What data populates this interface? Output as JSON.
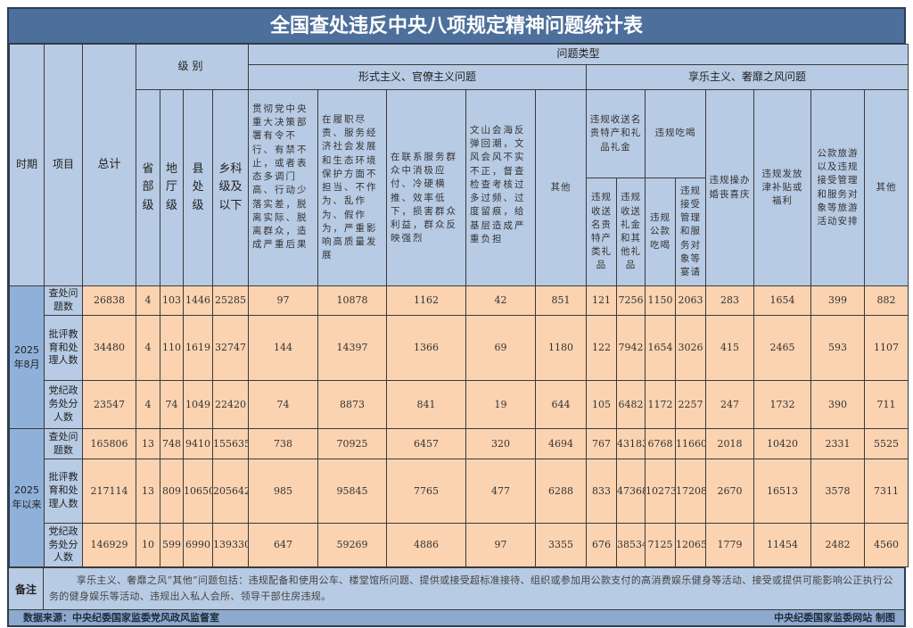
{
  "title": "全国查处违反中央八项规定精神问题统计表",
  "header": {
    "period": "时期",
    "item": "项目",
    "total": "总计",
    "level": "级别",
    "levels": [
      "省部级",
      "地厅级",
      "县处级",
      "乡科级及以下"
    ],
    "problem_type": "问题类型",
    "formalism": "形式主义、官僚主义问题",
    "formalism_cols": [
      "贯彻党中央重大决策部署有令不行、有禁不止，或者表态多调门高、行动少落实差，脱离实际、脱离群众，造成严重后果",
      "在履职尽责、服务经济社会发展和生态环境保护方面不担当、不作为、乱作为、假作为，严重影响高质量发展",
      "在联系服务群众中消极应付、冷硬横推、效率低下，损害群众利益，群众反映强烈",
      "文山会海反弹回潮，文风会风不实不正，督查检查考核过多过频、过度留痕，给基层造成严重负担",
      "其他"
    ],
    "hedonism": "享乐主义、奢靡之风问题",
    "gifts": "违规收送名贵特产和礼品礼金",
    "gifts_sub": [
      "违规收送名贵特产类礼品",
      "违规收送礼金和其他礼品"
    ],
    "dining": "违规吃喝",
    "dining_sub": [
      "违规公款吃喝",
      "违规接受管理和服务对象等宴请"
    ],
    "hedonism_cols": [
      "违规操办婚丧喜庆",
      "违规发放津补贴或福利",
      "公款旅游以及违规接受管理和服务对象等旅游活动安排",
      "其他"
    ]
  },
  "groups": [
    {
      "period": "2025年8月",
      "rows": [
        {
          "item": "查处问题数",
          "values": [
            "26838",
            "4",
            "103",
            "1446",
            "25285",
            "97",
            "10878",
            "1162",
            "42",
            "851",
            "121",
            "7256",
            "1150",
            "2063",
            "283",
            "1654",
            "399",
            "882"
          ]
        },
        {
          "item": "批评教育和处理人数",
          "values": [
            "34480",
            "4",
            "110",
            "1619",
            "32747",
            "144",
            "14397",
            "1366",
            "69",
            "1180",
            "122",
            "7942",
            "1654",
            "3026",
            "415",
            "2465",
            "593",
            "1107"
          ]
        },
        {
          "item": "党纪政务处分人数",
          "values": [
            "23547",
            "4",
            "74",
            "1049",
            "22420",
            "74",
            "8873",
            "841",
            "19",
            "644",
            "105",
            "6482",
            "1172",
            "2257",
            "247",
            "1732",
            "390",
            "711"
          ]
        }
      ]
    },
    {
      "period": "2025年以来",
      "rows": [
        {
          "item": "查处问题数",
          "values": [
            "165806",
            "13",
            "748",
            "9410",
            "155635",
            "738",
            "70925",
            "6457",
            "320",
            "4694",
            "767",
            "43183",
            "6768",
            "11660",
            "2018",
            "10420",
            "2331",
            "5525"
          ]
        },
        {
          "item": "批评教育和处理人数",
          "values": [
            "217114",
            "13",
            "809",
            "10650",
            "205642",
            "985",
            "95845",
            "7765",
            "477",
            "6288",
            "833",
            "47368",
            "10273",
            "17208",
            "2670",
            "16513",
            "3578",
            "7311"
          ]
        },
        {
          "item": "党纪政务处分人数",
          "values": [
            "146929",
            "10",
            "599",
            "6990",
            "139330",
            "647",
            "59269",
            "4886",
            "97",
            "3355",
            "676",
            "38534",
            "7125",
            "12065",
            "1779",
            "11454",
            "2482",
            "4560"
          ]
        }
      ]
    }
  ],
  "note": {
    "label": "备注",
    "text": "享乐主义、奢靡之风“其他”问题包括：违规配备和使用公车、楼堂馆所问题、提供或接受超标准接待、组织或参加用公款支付的高消费娱乐健身等活动、接受或提供可能影响公正执行公务的健身娱乐等活动、违规出入私人会所、领导干部住房违规。"
  },
  "footer": {
    "source": "数据来源：中央纪委国家监委党风政风监督室",
    "credit": "中央纪委国家监委网站 制图"
  },
  "colors": {
    "title_bg": "#4d6f9c",
    "header_bg": "#b8cbe4",
    "period_bg": "#8fb0d9",
    "data_bg": "#fbd3b1",
    "footer_bg": "#8ea9cd"
  }
}
